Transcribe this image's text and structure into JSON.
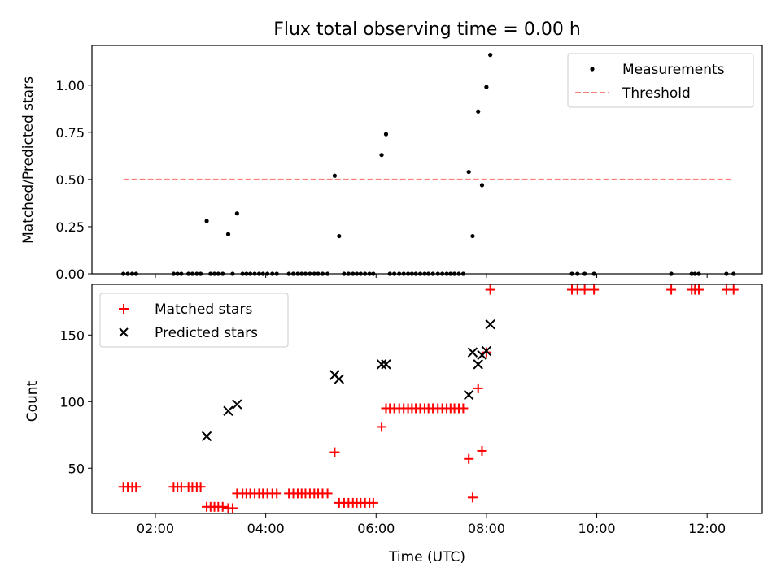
{
  "chart_data": [
    {
      "type": "scatter",
      "title": "Flux total observing time = 0.00 h",
      "xlabel": "",
      "ylabel": "Matched/Predicted stars",
      "xlim": [
        0.85,
        13.0
      ],
      "ylim": [
        0.0,
        1.21
      ],
      "yticks": [
        0.0,
        0.25,
        0.5,
        0.75,
        1.0
      ],
      "ytick_labels": [
        "0.00",
        "0.25",
        "0.50",
        "0.75",
        "1.00"
      ],
      "legend_position": "top-right",
      "series": [
        {
          "name": "Measurements",
          "marker": "dot",
          "color": "#000000",
          "x": [
            1.42,
            1.5,
            1.58,
            1.65,
            2.33,
            2.4,
            2.47,
            2.6,
            2.67,
            2.75,
            2.82,
            2.93,
            3.0,
            3.07,
            3.14,
            3.22,
            3.32,
            3.4,
            3.48,
            3.58,
            3.65,
            3.72,
            3.8,
            3.88,
            3.95,
            4.03,
            4.12,
            4.2,
            4.42,
            4.5,
            4.58,
            4.65,
            4.72,
            4.8,
            4.88,
            4.95,
            5.03,
            5.12,
            5.25,
            5.33,
            5.42,
            5.5,
            5.58,
            5.65,
            5.72,
            5.8,
            5.88,
            5.95,
            6.1,
            6.18,
            6.25,
            6.33,
            6.42,
            6.5,
            6.58,
            6.65,
            6.72,
            6.8,
            6.88,
            6.95,
            7.03,
            7.12,
            7.2,
            7.28,
            7.35,
            7.42,
            7.5,
            7.58,
            7.68,
            7.75,
            7.85,
            7.92,
            8.0,
            8.07,
            9.55,
            9.65,
            9.78,
            9.95,
            11.35,
            11.72,
            11.78,
            11.85,
            12.35,
            12.48
          ],
          "y": [
            0,
            0,
            0,
            0,
            0,
            0,
            0,
            0,
            0,
            0,
            0,
            0.28,
            0,
            0,
            0,
            0,
            0.21,
            0,
            0.32,
            0,
            0,
            0,
            0,
            0,
            0,
            0,
            0,
            0,
            0,
            0,
            0,
            0,
            0,
            0,
            0,
            0,
            0,
            0,
            0.52,
            0.2,
            0,
            0,
            0,
            0,
            0,
            0,
            0,
            0,
            0.63,
            0.74,
            0,
            0,
            0,
            0,
            0,
            0,
            0,
            0,
            0,
            0,
            0,
            0,
            0,
            0,
            0,
            0,
            0,
            0,
            0.54,
            0.2,
            0.86,
            0.47,
            0.99,
            1.16,
            0,
            0,
            0,
            0,
            0,
            0,
            0,
            0,
            0,
            0
          ]
        },
        {
          "name": "Threshold",
          "style": "dashed",
          "color": "#ff7f7f",
          "x": [
            1.42,
            12.48
          ],
          "y": [
            0.5,
            0.5
          ]
        }
      ]
    },
    {
      "type": "scatter",
      "title": "",
      "xlabel": "Time (UTC)",
      "ylabel": "Count",
      "xlim": [
        0.85,
        13.0
      ],
      "ylim": [
        16,
        188
      ],
      "yticks": [
        50,
        100,
        150
      ],
      "ytick_labels": [
        "50",
        "100",
        "150"
      ],
      "xticks": [
        2,
        4,
        6,
        8,
        10,
        12
      ],
      "xtick_labels": [
        "02:00",
        "04:00",
        "06:00",
        "08:00",
        "10:00",
        "12:00"
      ],
      "legend_position": "top-left",
      "series": [
        {
          "name": "Matched stars",
          "marker": "plus",
          "color": "#ff0000",
          "x": [
            1.42,
            1.5,
            1.58,
            1.65,
            2.33,
            2.4,
            2.47,
            2.6,
            2.67,
            2.75,
            2.82,
            2.93,
            3.0,
            3.07,
            3.14,
            3.22,
            3.32,
            3.4,
            3.48,
            3.58,
            3.65,
            3.72,
            3.8,
            3.88,
            3.95,
            4.03,
            4.12,
            4.2,
            4.42,
            4.5,
            4.58,
            4.65,
            4.72,
            4.8,
            4.88,
            4.95,
            5.03,
            5.12,
            5.25,
            5.33,
            5.42,
            5.5,
            5.58,
            5.65,
            5.72,
            5.8,
            5.88,
            5.95,
            6.1,
            6.18,
            6.25,
            6.33,
            6.42,
            6.5,
            6.58,
            6.65,
            6.72,
            6.8,
            6.88,
            6.95,
            7.03,
            7.12,
            7.2,
            7.28,
            7.35,
            7.42,
            7.5,
            7.58,
            7.68,
            7.75,
            7.85,
            7.92,
            8.0,
            8.07,
            9.55,
            9.65,
            9.78,
            9.95,
            11.35,
            11.72,
            11.78,
            11.85,
            12.35,
            12.48
          ],
          "y": [
            36,
            36,
            36,
            36,
            36,
            36,
            36,
            36,
            36,
            36,
            36,
            21,
            21,
            21,
            21,
            21,
            20,
            20,
            31,
            31,
            31,
            31,
            31,
            31,
            31,
            31,
            31,
            31,
            31,
            31,
            31,
            31,
            31,
            31,
            31,
            31,
            31,
            31,
            62,
            24,
            24,
            24,
            24,
            24,
            24,
            24,
            24,
            24,
            81,
            95,
            95,
            95,
            95,
            95,
            95,
            95,
            95,
            95,
            95,
            95,
            95,
            95,
            95,
            95,
            95,
            95,
            95,
            95,
            57,
            28,
            110,
            63,
            137,
            184,
            184,
            184,
            184,
            184,
            184,
            184,
            184,
            184,
            184,
            184
          ]
        },
        {
          "name": "Predicted stars",
          "marker": "x",
          "color": "#000000",
          "x": [
            2.93,
            3.32,
            3.48,
            5.25,
            5.33,
            6.1,
            6.18,
            7.68,
            7.75,
            7.85,
            7.92,
            8.0,
            8.07
          ],
          "y": [
            74,
            93,
            98,
            120,
            117,
            128,
            128,
            105,
            137,
            128,
            135,
            138,
            158
          ]
        }
      ]
    }
  ]
}
